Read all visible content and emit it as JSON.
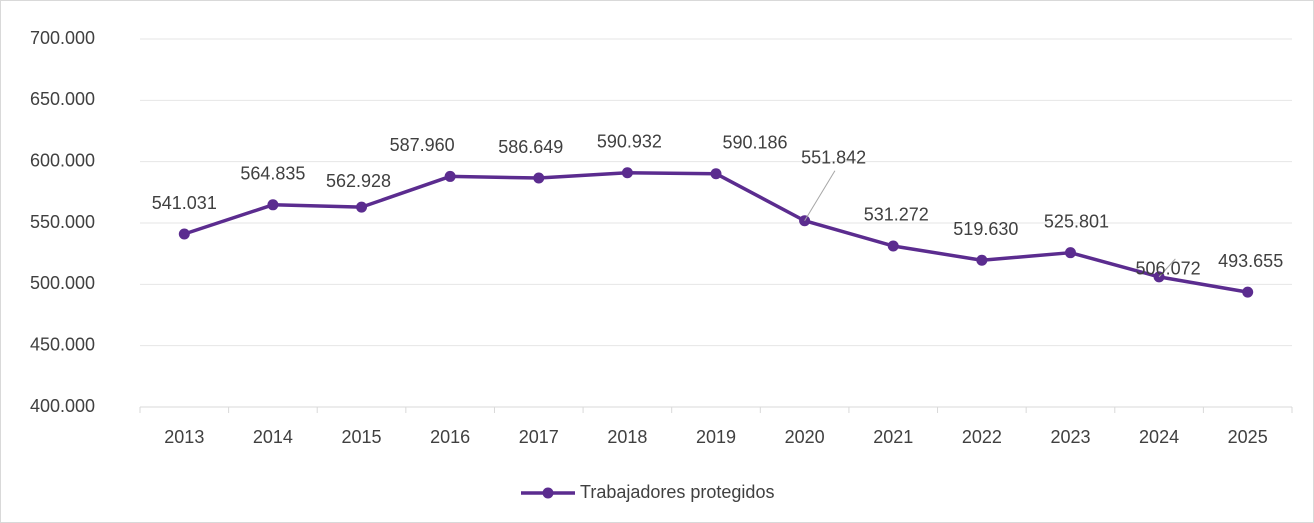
{
  "chart_data": {
    "type": "line",
    "categories": [
      "2013",
      "2014",
      "2015",
      "2016",
      "2017",
      "2018",
      "2019",
      "2020",
      "2021",
      "2022",
      "2023",
      "2024",
      "2025"
    ],
    "series": [
      {
        "name": "Trabajadores protegidos",
        "color": "#5b2c8f",
        "values": [
          541031,
          564835,
          562928,
          587960,
          586649,
          590932,
          590186,
          551842,
          531272,
          519630,
          525801,
          506072,
          493655
        ],
        "value_labels": [
          "541.031",
          "564.835",
          "562.928",
          "587.960",
          "586.649",
          "590.932",
          "590.186",
          "551.842",
          "531.272",
          "519.630",
          "525.801",
          "506.072",
          "493.655"
        ]
      }
    ],
    "ylim": [
      400000,
      700000
    ],
    "yticks": [
      {
        "value": 400000,
        "label": "400.000"
      },
      {
        "value": 450000,
        "label": "450.000"
      },
      {
        "value": 500000,
        "label": "500.000"
      },
      {
        "value": 550000,
        "label": "550.000"
      },
      {
        "value": 600000,
        "label": "600.000"
      },
      {
        "value": 650000,
        "label": "650.000"
      },
      {
        "value": 700000,
        "label": "700.000"
      }
    ],
    "grid": true,
    "legend": "bottom"
  }
}
